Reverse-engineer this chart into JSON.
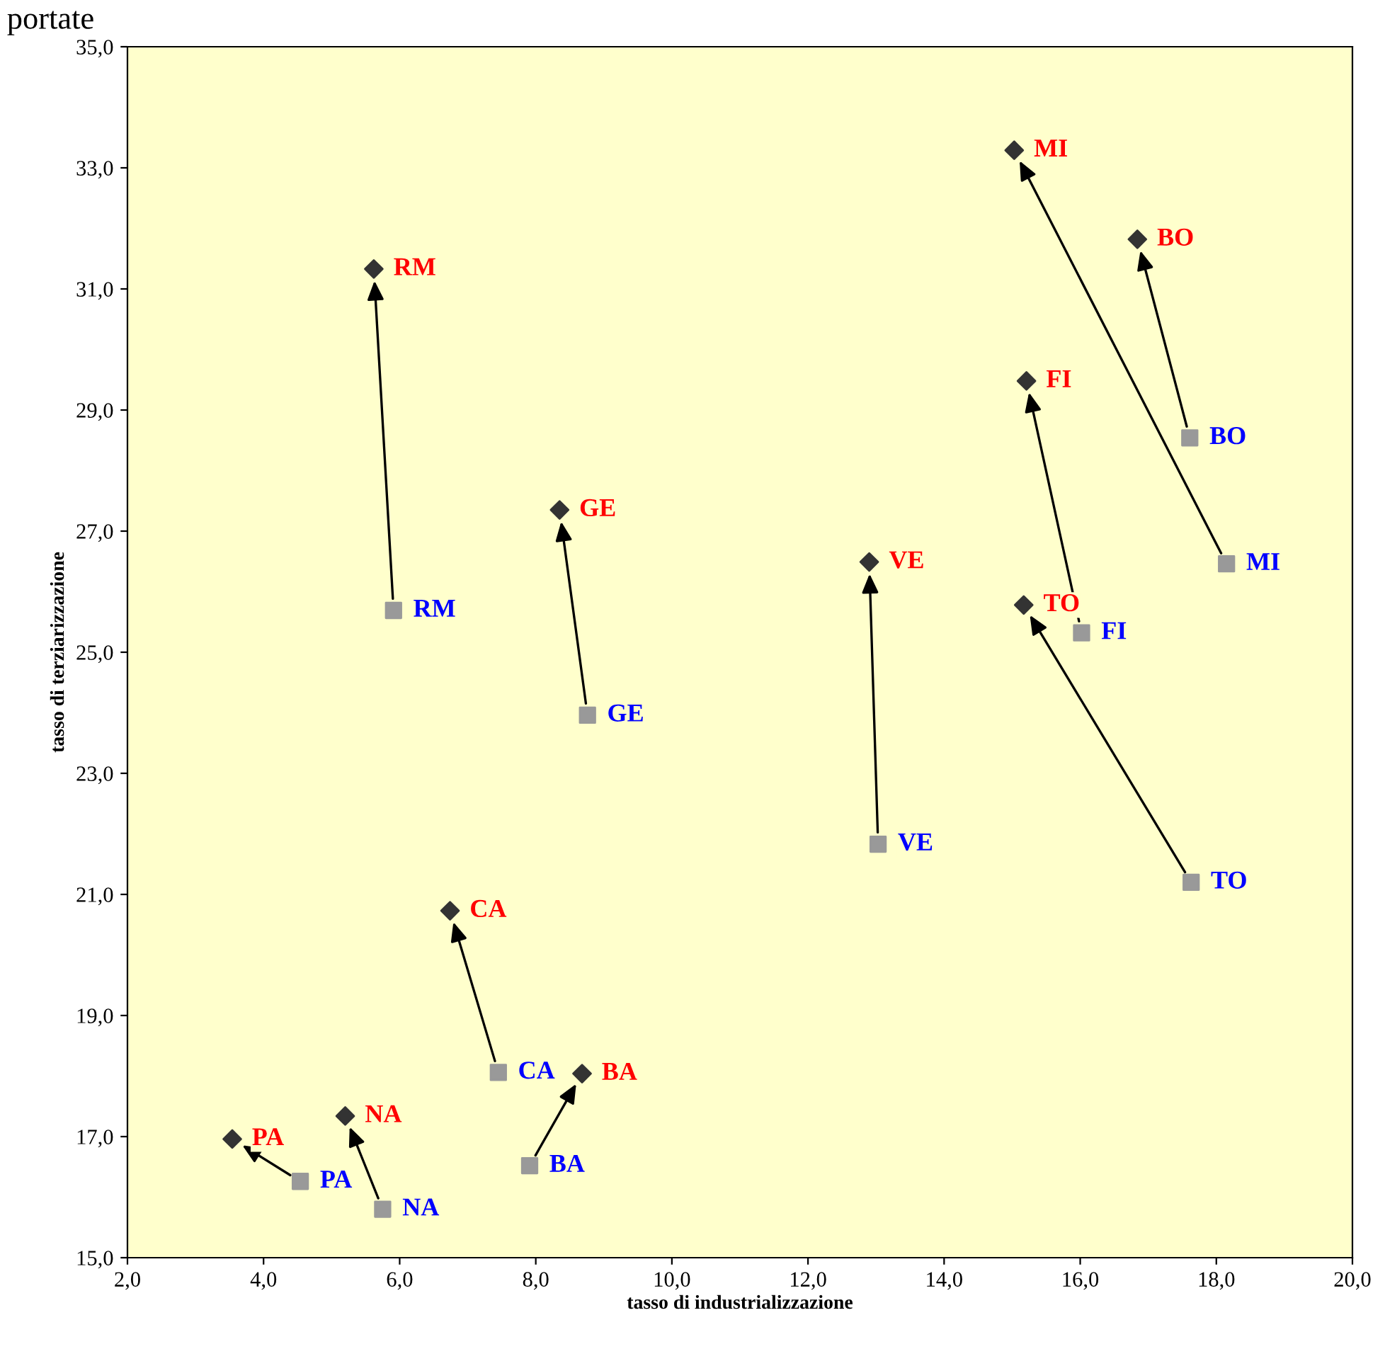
{
  "chart_data": {
    "type": "scatter",
    "xlabel": "tasso di industrializzazione",
    "ylabel": "tasso di terziarizzazione",
    "xlim": [
      2.0,
      20.0
    ],
    "ylim": [
      15.0,
      35.0
    ],
    "xticks": [
      {
        "value": 2,
        "label": "2,0"
      },
      {
        "value": 4,
        "label": "4,0"
      },
      {
        "value": 6,
        "label": "6,0"
      },
      {
        "value": 8,
        "label": "8,0"
      },
      {
        "value": 10,
        "label": "10,0"
      },
      {
        "value": 12,
        "label": "12,0"
      },
      {
        "value": 14,
        "label": "14,0"
      },
      {
        "value": 16,
        "label": "16,0"
      },
      {
        "value": 18,
        "label": "18,0"
      },
      {
        "value": 20,
        "label": "20,0"
      }
    ],
    "yticks": [
      {
        "value": 15,
        "label": "15,0"
      },
      {
        "value": 17,
        "label": "17,0"
      },
      {
        "value": 19,
        "label": "19,0"
      },
      {
        "value": 21,
        "label": "21,0"
      },
      {
        "value": 23,
        "label": "23,0"
      },
      {
        "value": 25,
        "label": "25,0"
      },
      {
        "value": 27,
        "label": "27,0"
      },
      {
        "value": 29,
        "label": "29,0"
      },
      {
        "value": 31,
        "label": "31,0"
      },
      {
        "value": 33,
        "label": "33,0"
      },
      {
        "value": 35,
        "label": "35,0"
      }
    ],
    "grid": false,
    "legend": false,
    "series": [
      {
        "color": "#999999",
        "marker": "square",
        "x": [
          5.91,
          8.76,
          13.03,
          17.63,
          16.02,
          18.15,
          17.61,
          7.45,
          7.91,
          4.54,
          5.75
        ],
        "values": [
          25.69,
          23.96,
          21.83,
          21.2,
          25.32,
          26.46,
          28.54,
          18.06,
          16.52,
          16.26,
          15.8
        ]
      },
      {
        "color": "#333333",
        "marker": "diamond",
        "x": [
          5.62,
          8.35,
          12.9,
          15.17,
          15.21,
          15.03,
          16.84,
          6.74,
          8.68,
          3.54,
          5.2
        ],
        "values": [
          31.33,
          27.35,
          26.49,
          25.78,
          29.48,
          33.29,
          31.82,
          20.73,
          18.04,
          16.96,
          17.34
        ]
      }
    ],
    "annotations": [
      "portate",
      {
        "text": "RM",
        "x": 5.91,
        "y": 25.69
      },
      {
        "text": "GE",
        "x": 8.76,
        "y": 23.96
      },
      {
        "text": "VE",
        "x": 13.03,
        "y": 21.83
      },
      {
        "text": "TO",
        "x": 17.63,
        "y": 21.2
      },
      {
        "text": "FI",
        "x": 16.02,
        "y": 25.32
      },
      {
        "text": "MI",
        "x": 18.15,
        "y": 26.46
      },
      {
        "text": "BO",
        "x": 17.61,
        "y": 28.54
      },
      {
        "text": "CA",
        "x": 7.45,
        "y": 18.06
      },
      {
        "text": "BA",
        "x": 7.91,
        "y": 16.52
      },
      {
        "text": "PA",
        "x": 4.54,
        "y": 16.26
      },
      {
        "text": "NA",
        "x": 5.75,
        "y": 15.8
      },
      {
        "text": "RM",
        "x": 5.62,
        "y": 31.33
      },
      {
        "text": "GE",
        "x": 8.35,
        "y": 27.35
      },
      {
        "text": "VE",
        "x": 12.9,
        "y": 26.49
      },
      {
        "text": "TO",
        "x": 15.17,
        "y": 25.78
      },
      {
        "text": "FI",
        "x": 15.21,
        "y": 29.48
      },
      {
        "text": "MI",
        "x": 15.03,
        "y": 33.29
      },
      {
        "text": "BO",
        "x": 16.84,
        "y": 31.82
      },
      {
        "text": "CA",
        "x": 6.74,
        "y": 20.73
      },
      {
        "text": "BA",
        "x": 8.68,
        "y": 18.04
      },
      {
        "text": "PA",
        "x": 3.54,
        "y": 16.96
      },
      {
        "text": "NA",
        "x": 5.2,
        "y": 17.34
      }
    ]
  }
}
